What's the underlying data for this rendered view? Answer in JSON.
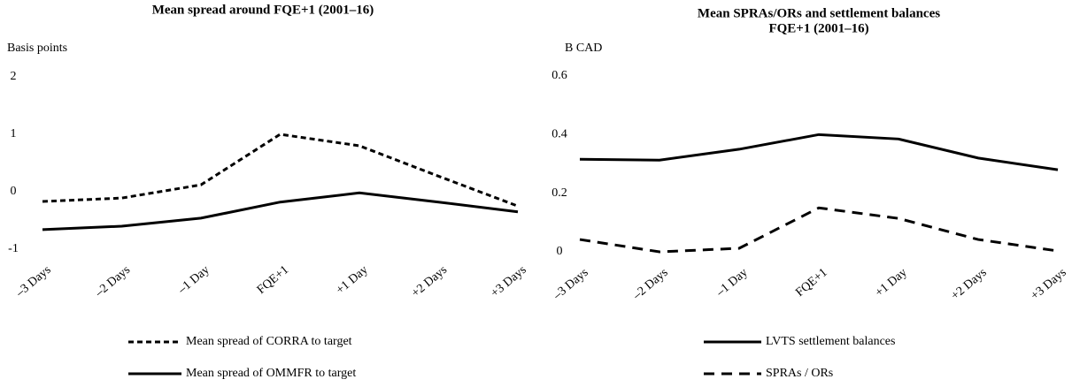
{
  "chart_data": [
    {
      "type": "line",
      "title": "Mean spread around FQE+1  (2001–16)",
      "y_label": "Basis points",
      "categories": [
        "–3 Days",
        "–2 Days",
        "–1 Day",
        "FQE+1",
        "+1 Day",
        "+2 Days",
        "+3 Days"
      ],
      "ylim": [
        -1,
        2
      ],
      "yticks": [
        -1,
        0,
        1,
        2
      ],
      "grid": false,
      "series": [
        {
          "name": "Mean spread of CORRA to target",
          "color": "#000000",
          "dash": "6,4",
          "values": [
            -0.17,
            -0.11,
            0.12,
            1.0,
            0.8,
            0.27,
            -0.25
          ]
        },
        {
          "name": "Mean spread of OMMFR to target",
          "color": "#000000",
          "dash": "none",
          "values": [
            -0.66,
            -0.6,
            -0.46,
            -0.18,
            -0.02,
            -0.18,
            -0.35
          ]
        }
      ]
    },
    {
      "type": "line",
      "title": [
        "Mean SPRAs/ORs and settlement balances",
        "FQE+1  (2001–16)"
      ],
      "y_label": "B CAD",
      "categories": [
        "–3 Days",
        "–2 Days",
        "–1 Day",
        "FQE+1",
        "+1 Day",
        "+2 Days",
        "+3 Days"
      ],
      "ylim": [
        0,
        0.6
      ],
      "yticks": [
        0,
        0.2,
        0.4,
        0.6
      ],
      "grid": false,
      "series": [
        {
          "name": "LVTS settlement balances",
          "color": "#000000",
          "dash": "none",
          "values": [
            0.316,
            0.313,
            0.35,
            0.4,
            0.385,
            0.32,
            0.28
          ]
        },
        {
          "name": "SPRAs / ORs",
          "color": "#000000",
          "dash": "12,8",
          "values": [
            0.042,
            0.0,
            0.012,
            0.15,
            0.114,
            0.042,
            0.003
          ]
        }
      ]
    }
  ]
}
